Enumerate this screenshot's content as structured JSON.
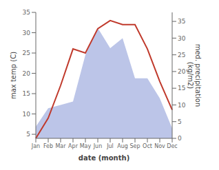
{
  "chart_data": {
    "type": "line",
    "categories": [
      "Jan",
      "Feb",
      "Mar",
      "Apr",
      "May",
      "Jun",
      "Jul",
      "Aug",
      "Sep",
      "Oct",
      "Nov",
      "Dec"
    ],
    "series": [
      {
        "type": "area",
        "axis": "y2",
        "color": "#bcc5e8",
        "values": [
          3.5,
          9.0,
          10.0,
          11.0,
          25.0,
          33.0,
          27.0,
          30.0,
          18.0,
          18.0,
          12.0,
          3.0
        ]
      },
      {
        "type": "line",
        "color": "#c0392b",
        "values": [
          4.0,
          9.0,
          17.0,
          26.0,
          25.0,
          31.0,
          33.0,
          32.0,
          32.0,
          26.0,
          18.0,
          11.0
        ]
      }
    ],
    "xlabel": "date (month)",
    "ylabel": "max temp (C)",
    "y2label": "med. precipitation\n(kg/m2)",
    "ylim": [
      4,
      35
    ],
    "yticks": [
      5,
      10,
      15,
      20,
      25,
      30,
      35
    ],
    "y2lim": [
      0,
      37.7
    ],
    "y2ticks": [
      0,
      5,
      10,
      15,
      20,
      25,
      30,
      35
    ],
    "grid": false
  }
}
